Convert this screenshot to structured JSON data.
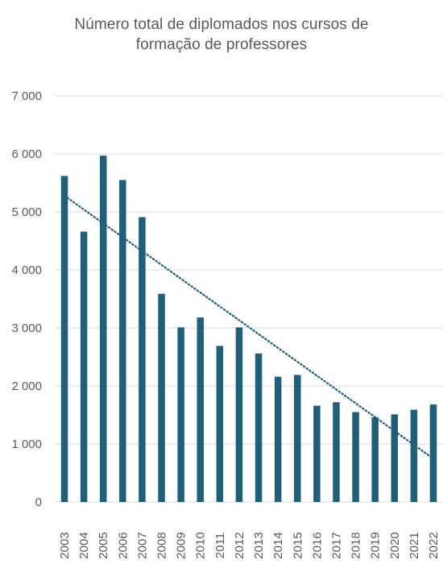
{
  "chart_data": {
    "type": "bar",
    "title_lines": [
      "Número total de diplomados nos cursos de",
      "formação de professores"
    ],
    "categories": [
      "2003",
      "2004",
      "2005",
      "2006",
      "2007",
      "2008",
      "2009",
      "2010",
      "2011",
      "2012",
      "2013",
      "2014",
      "2015",
      "2016",
      "2017",
      "2018",
      "2019",
      "2020",
      "2021",
      "2022"
    ],
    "values": [
      5620,
      4660,
      5970,
      5550,
      4910,
      3590,
      3010,
      3180,
      2690,
      3010,
      2560,
      2160,
      2190,
      1660,
      1720,
      1550,
      1460,
      1510,
      1590,
      1680
    ],
    "y_ticks": [
      "0",
      "1 000",
      "2 000",
      "3 000",
      "4 000",
      "5 000",
      "6 000",
      "7 000"
    ],
    "ylim": [
      0,
      7000
    ],
    "trendline": {
      "type": "linear",
      "style": "dotted"
    },
    "grid": "horizontal",
    "colors": {
      "bar": "#1f5f7a",
      "trend": "#1f5f7a",
      "grid": "#d9d9d9",
      "text": "#595959"
    }
  }
}
